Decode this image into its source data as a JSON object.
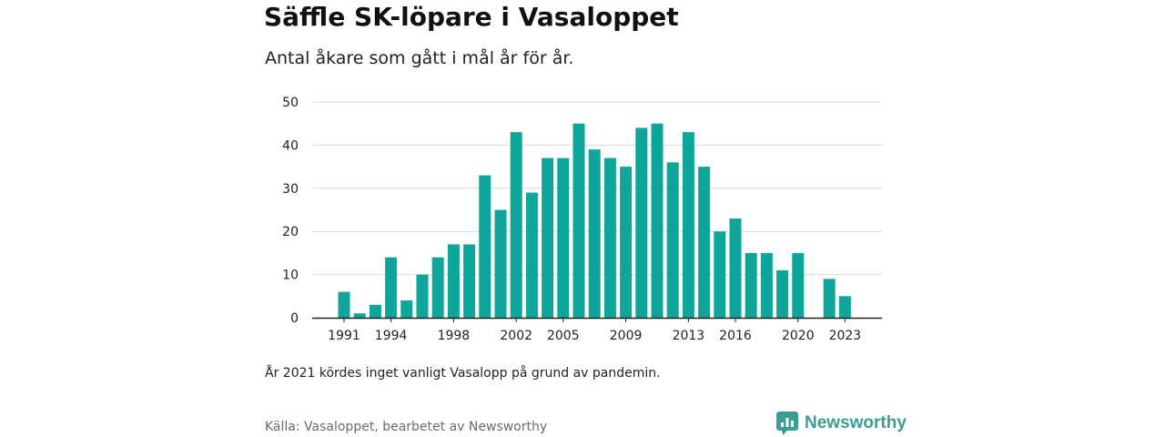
{
  "header": {
    "title": "Säffle SK-löpare i Vasaloppet",
    "subtitle": "Antal åkare som gått i mål år för år."
  },
  "footer": {
    "note": "År 2021 kördes inget vanligt Vasalopp på grund av pandemin.",
    "source": "Källa: Vasaloppet, bearbetet av Newsworthy",
    "brand": "Newsworthy",
    "brand_icon": "newsworthy-logo-icon"
  },
  "colors": {
    "bar": "#0ea59b",
    "grid": "#d9d9d9",
    "axis": "#222222",
    "brand": "#3a9d93"
  },
  "chart_data": {
    "type": "bar",
    "title": "Säffle SK-löpare i Vasaloppet",
    "subtitle": "Antal åkare som gått i mål år för år.",
    "xlabel": "",
    "ylabel": "",
    "ylim": [
      0,
      50
    ],
    "yticks": [
      0,
      10,
      20,
      30,
      40,
      50
    ],
    "xtick_labels": [
      "1991",
      "1994",
      "1998",
      "2002",
      "2005",
      "2009",
      "2013",
      "2016",
      "2020",
      "2023"
    ],
    "grid": true,
    "categories": [
      1991,
      1992,
      1993,
      1994,
      1995,
      1996,
      1997,
      1998,
      1999,
      2000,
      2001,
      2002,
      2003,
      2004,
      2005,
      2006,
      2007,
      2008,
      2009,
      2010,
      2011,
      2012,
      2013,
      2014,
      2015,
      2016,
      2017,
      2018,
      2019,
      2020,
      2021,
      2022,
      2023
    ],
    "values": [
      6,
      1,
      3,
      14,
      4,
      10,
      14,
      17,
      17,
      33,
      25,
      43,
      29,
      37,
      37,
      45,
      39,
      37,
      35,
      44,
      45,
      36,
      43,
      35,
      20,
      23,
      15,
      15,
      11,
      15,
      null,
      9,
      5
    ]
  }
}
